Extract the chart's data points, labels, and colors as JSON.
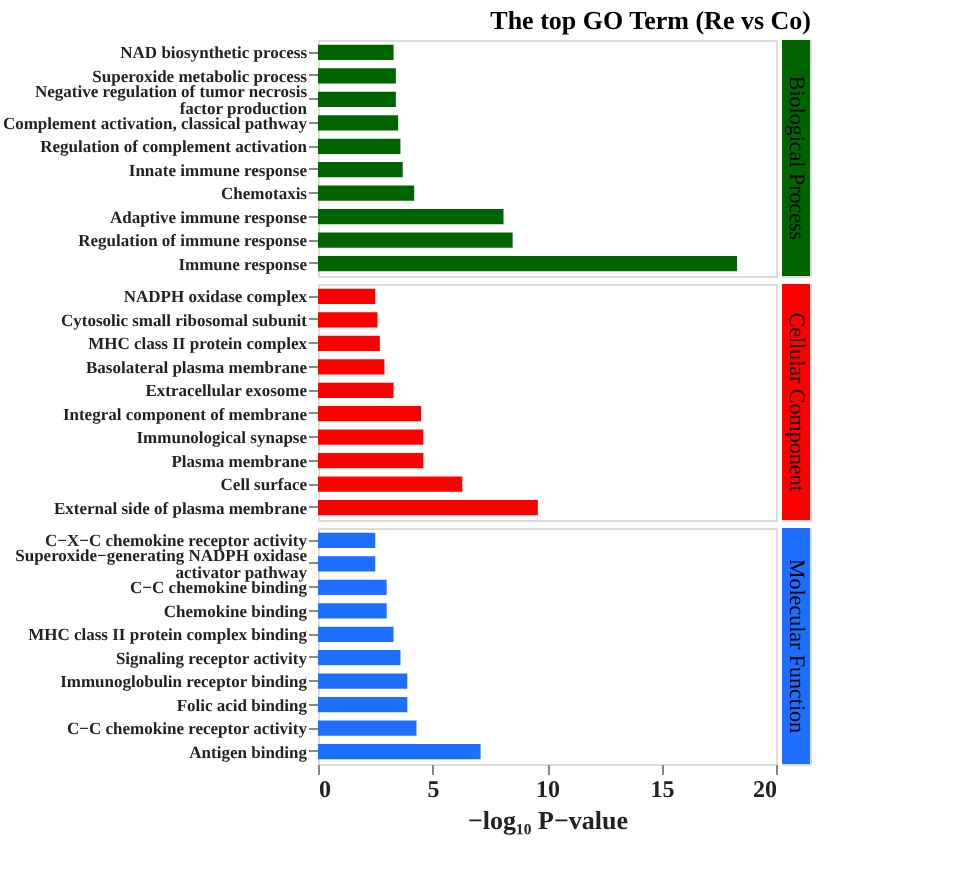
{
  "chart_data": [
    {
      "type": "bar",
      "orientation": "horizontal",
      "title": "The top GO Term (Re vs Co)",
      "y2label": "Biological Process",
      "categories": [
        "NAD biosynthetic process",
        "Superoxide metabolic process",
        "Negative regulation of tumor necrosis\nfactor production",
        "Complement activation, classical pathway",
        "Regulation of complement activation",
        "Innate immune response",
        "Chemotaxis",
        "Adaptive immune response",
        "Regulation of immune response",
        "Immune response"
      ],
      "values": [
        3.3,
        3.4,
        3.4,
        3.5,
        3.6,
        3.7,
        4.2,
        8.1,
        8.5,
        18.3
      ],
      "color": "#006400",
      "xlim": [
        0,
        20
      ],
      "xticks": [
        0,
        5,
        10,
        15,
        20
      ],
      "tick_labels": "y"
    },
    {
      "type": "bar",
      "orientation": "horizontal",
      "y2label": "Cellular Component",
      "categories": [
        "NADPH oxidase complex",
        "Cytosolic small ribosomal subunit",
        "MHC class II protein complex",
        "Basolateral plasma membrane",
        "Extracellular exosome",
        "Integral component of membrane",
        "Immunological synapse",
        "Plasma membrane",
        "Cell surface",
        "External side of plasma membrane"
      ],
      "values": [
        2.5,
        2.6,
        2.7,
        2.9,
        3.3,
        4.5,
        4.6,
        4.6,
        6.3,
        9.6
      ],
      "color": "#ff0000",
      "xlim": [
        0,
        20
      ],
      "xticks": [
        0,
        5,
        10,
        15,
        20
      ],
      "tick_labels": "y"
    },
    {
      "type": "bar",
      "orientation": "horizontal",
      "y2label": "Molecular Function",
      "xlabel": "−log₁₀ P−value",
      "categories": [
        "C−X−C chemokine receptor activity",
        "Superoxide−generating NADPH oxidase\nactivator pathway",
        "C−C chemokine binding",
        "Chemokine binding",
        "MHC class II protein complex binding",
        "Signaling receptor activity",
        "Immunoglobulin receptor binding",
        "Folic acid binding",
        "C−C chemokine receptor activity",
        "Antigen binding"
      ],
      "values": [
        2.5,
        2.5,
        3.0,
        3.0,
        3.3,
        3.6,
        3.9,
        3.9,
        4.3,
        7.1
      ],
      "color": "#1e6fff",
      "xlim": [
        0,
        20
      ],
      "xticks": [
        0,
        5,
        10,
        15,
        20
      ]
    }
  ]
}
